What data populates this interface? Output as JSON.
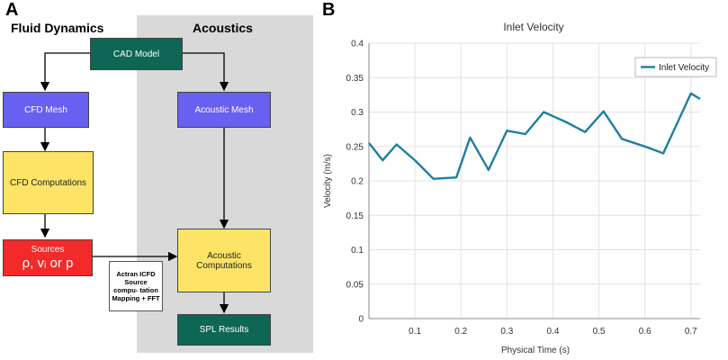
{
  "diagram": {
    "panel_label": "A",
    "left_heading": "Fluid Dynamics",
    "right_heading": "Acoustics",
    "cad_model": "CAD Model",
    "cfd_mesh": "CFD Mesh",
    "acoustic_mesh": "Acoustic Mesh",
    "cfd_computations": "CFD Computations",
    "sources_title": "Sources",
    "sources_formula": "ρ, vᵢ or p",
    "acoustic_computations": "Acoustic Computations",
    "actran_note": "Actran ICFD Source compu- tation Mapping + FFT",
    "spl_results": "SPL Results"
  },
  "chart_panel": {
    "panel_label": "B"
  },
  "chart_data": {
    "type": "line",
    "title": "Inlet Velocity",
    "xlabel": "Physical Time (s)",
    "ylabel": "Velocity (m/s)",
    "xlim": [
      0,
      0.72
    ],
    "ylim": [
      0,
      0.4
    ],
    "x_ticks": [
      "0.1",
      "0.2",
      "0.3",
      "0.4",
      "0.5",
      "0.6",
      "0.7"
    ],
    "y_ticks": [
      "0",
      "0.05",
      "0.1",
      "0.15",
      "0.2",
      "0.25",
      "0.3",
      "0.35",
      "0.4"
    ],
    "legend_position": "top-right",
    "line_color": "#1f7f9f",
    "series": [
      {
        "name": "Inlet Velocity",
        "x": [
          0.0,
          0.03,
          0.06,
          0.1,
          0.14,
          0.19,
          0.22,
          0.26,
          0.3,
          0.34,
          0.38,
          0.43,
          0.47,
          0.51,
          0.55,
          0.6,
          0.64,
          0.7,
          0.72
        ],
        "y": [
          0.255,
          0.23,
          0.253,
          0.23,
          0.203,
          0.205,
          0.263,
          0.216,
          0.273,
          0.268,
          0.3,
          0.285,
          0.271,
          0.301,
          0.261,
          0.25,
          0.24,
          0.327,
          0.319
        ]
      }
    ]
  }
}
